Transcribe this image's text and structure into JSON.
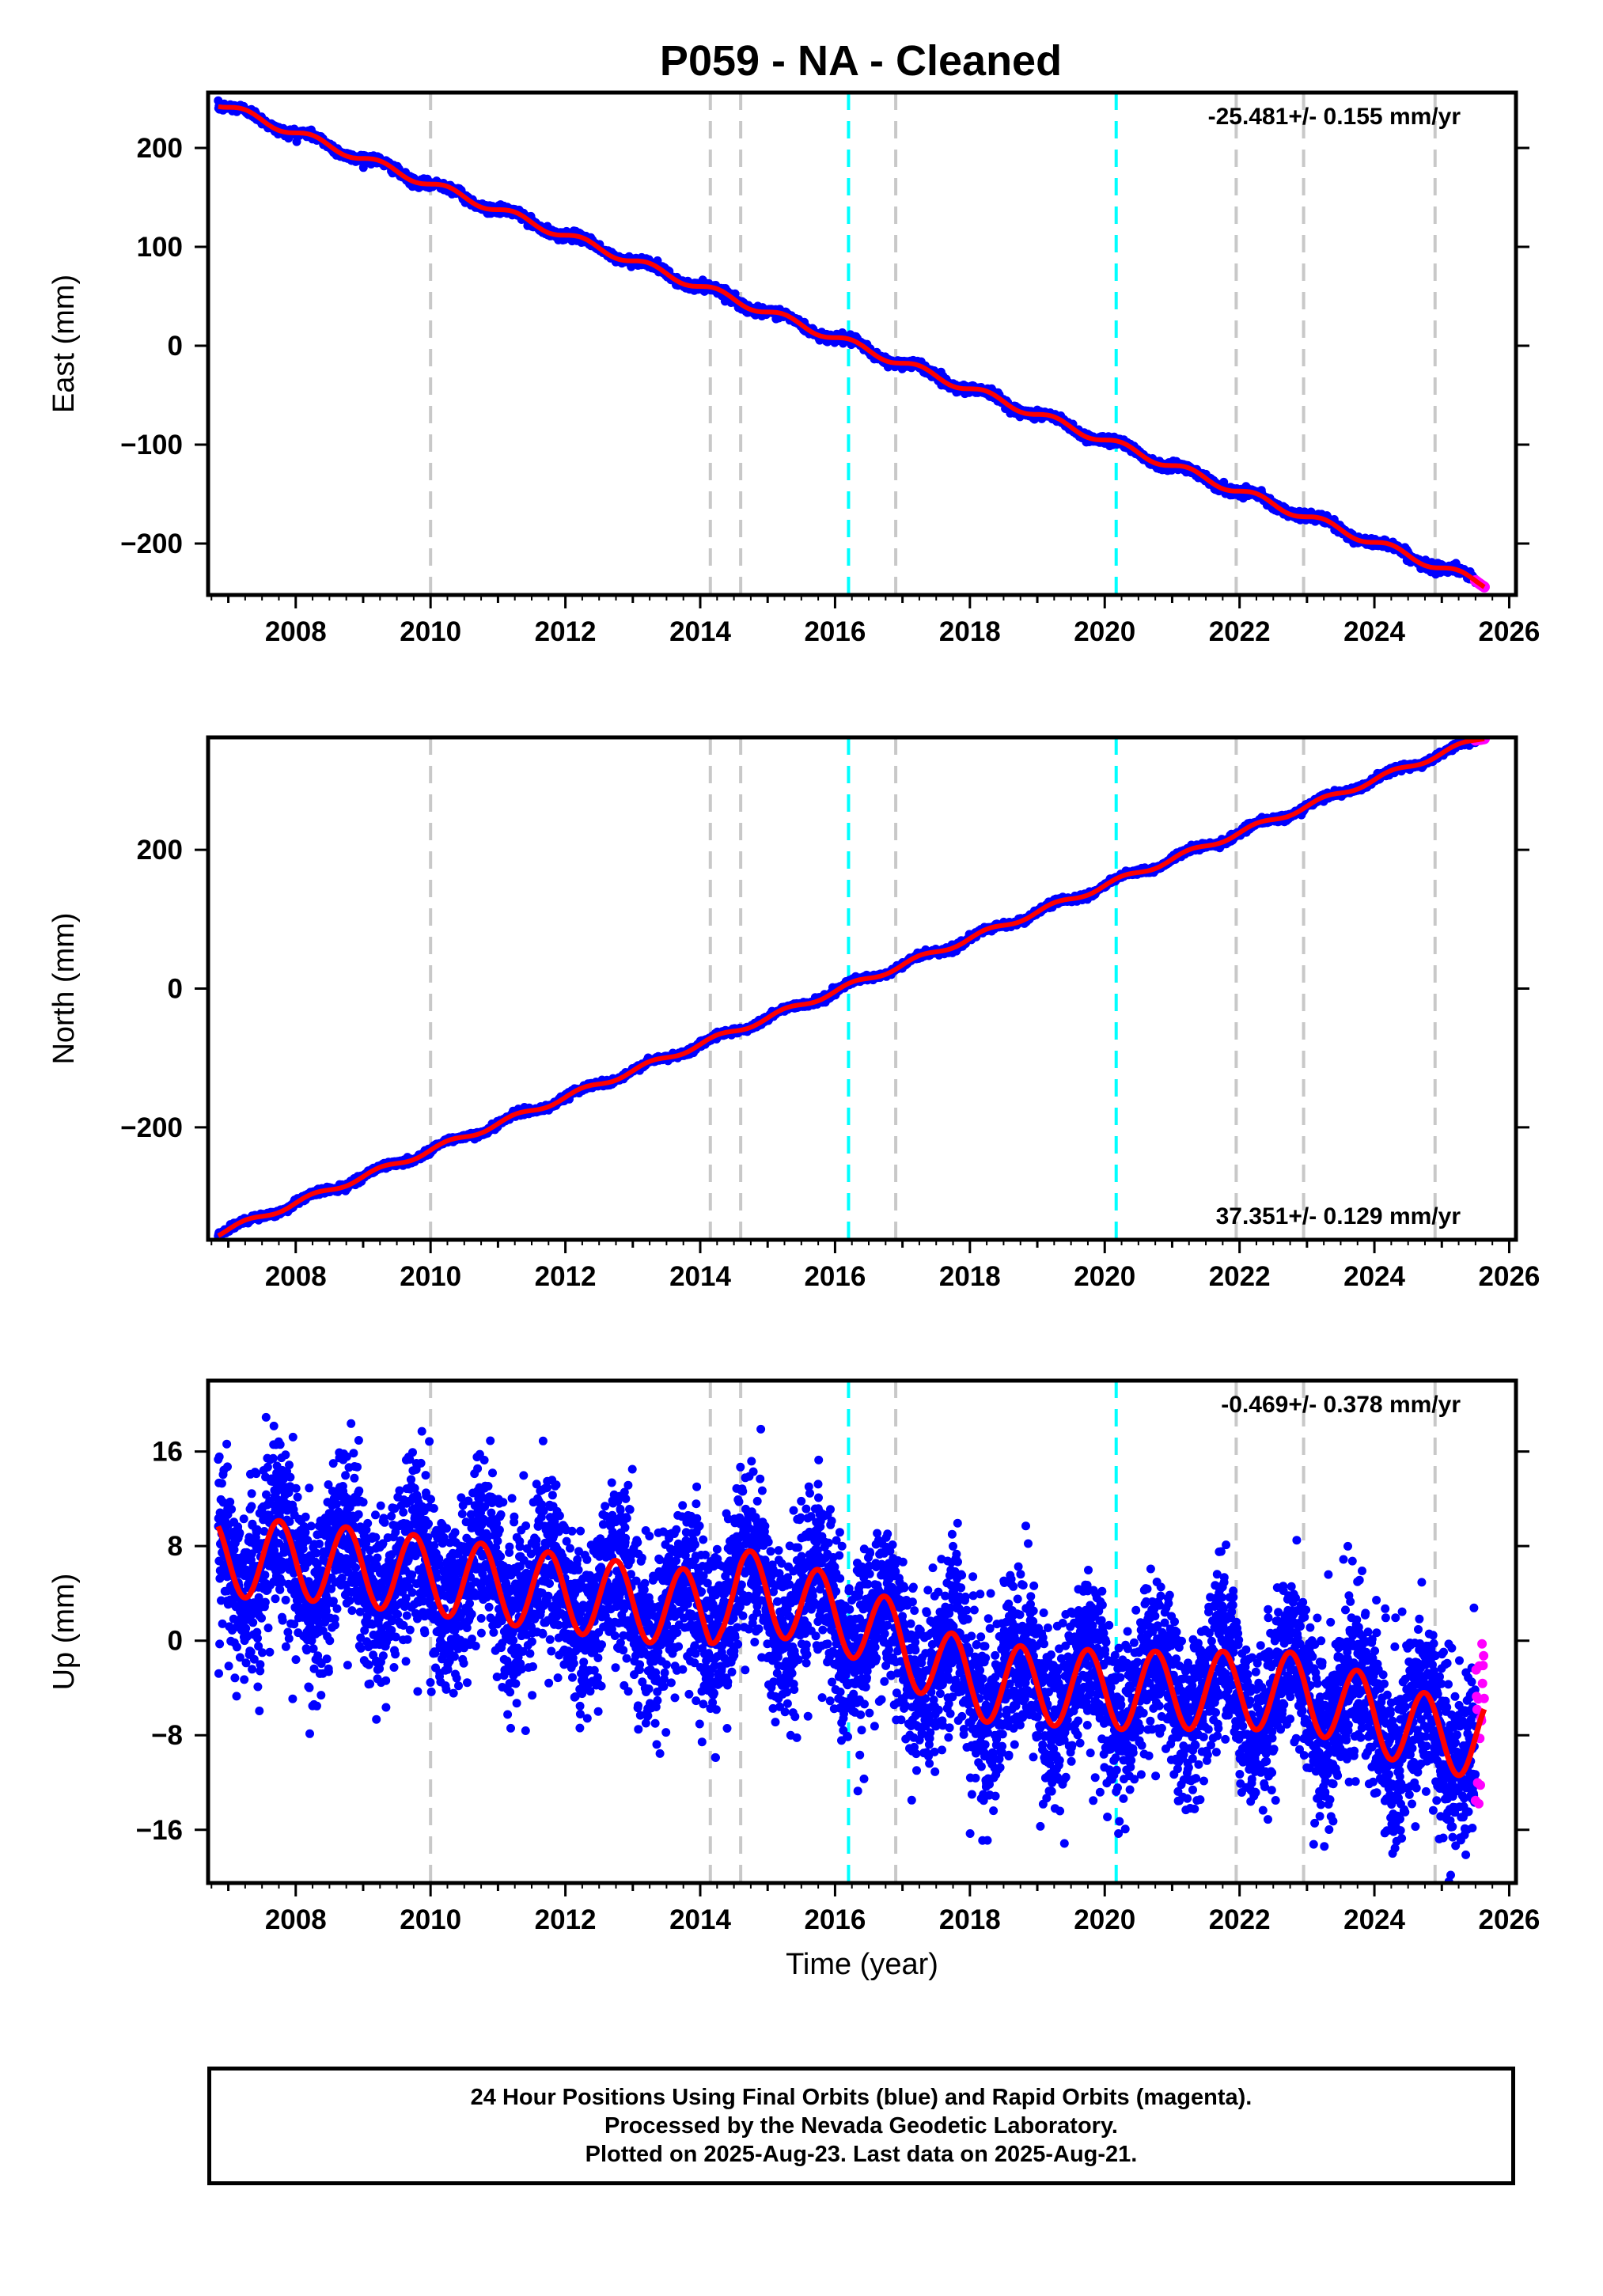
{
  "title": "P059  - NA - Cleaned",
  "colors": {
    "final_orbits": "#0000ff",
    "rapid_orbits": "#ff00ff",
    "model_fit": "#ff0000",
    "equipment_change": "#c8c8c8",
    "earthquake": "#00ffff"
  },
  "footer": {
    "line1": "24 Hour Positions Using Final Orbits (blue) and Rapid Orbits (magenta).",
    "line2": "Processed by the Nevada Geodetic Laboratory.",
    "line3": "Plotted on 2025-Aug-23. Last data on 2025-Aug-21."
  },
  "chart_data": [
    {
      "type": "scatter",
      "ylabel": "East (mm)",
      "xlabel": "",
      "rate_label": "-25.481+/- 0.155 mm/yr",
      "rate_position": "top-right",
      "xlim": [
        2006.7,
        2026.1
      ],
      "ylim": [
        -252,
        256
      ],
      "xticks": [
        2008,
        2010,
        2012,
        2014,
        2016,
        2018,
        2020,
        2022,
        2024,
        2026
      ],
      "yticks": [
        200,
        100,
        0,
        -100,
        -200
      ],
      "ytick_labels": [
        "200",
        "100",
        "0",
        "−100",
        "−200"
      ],
      "trend": {
        "start": [
          2006.85,
          245
        ],
        "end": [
          2025.63,
          -241
        ]
      },
      "final_orbits_end": 2025.5,
      "rapid_orbits_range": [
        2025.5,
        2025.63
      ],
      "equipment_change_lines": [
        2010.0,
        2014.15,
        2014.6,
        2016.9,
        2021.95,
        2022.95,
        2024.9
      ],
      "earthquake_lines": [
        2016.2,
        2020.17
      ]
    },
    {
      "type": "scatter",
      "ylabel": "North (mm)",
      "xlabel": "",
      "rate_label": "37.351+/- 0.129 mm/yr",
      "rate_position": "bottom-right",
      "xlim": [
        2006.7,
        2026.1
      ],
      "ylim": [
        -362,
        362
      ],
      "xticks": [
        2008,
        2010,
        2012,
        2014,
        2016,
        2018,
        2020,
        2022,
        2024,
        2026
      ],
      "yticks": [
        200,
        0,
        -200
      ],
      "ytick_labels": [
        "200",
        "0",
        "−200"
      ],
      "trend": {
        "start": [
          2006.85,
          -353
        ],
        "end": [
          2025.63,
          363
        ]
      },
      "final_orbits_end": 2025.5,
      "rapid_orbits_range": [
        2025.5,
        2025.63
      ],
      "equipment_change_lines": [
        2010.0,
        2014.15,
        2014.6,
        2016.9,
        2021.95,
        2022.95,
        2024.9
      ],
      "earthquake_lines": [
        2016.2,
        2020.17
      ]
    },
    {
      "type": "scatter",
      "ylabel": "Up (mm)",
      "xlabel": "Time (year)",
      "rate_label": "-0.469+/- 0.378 mm/yr",
      "rate_position": "top-right",
      "xlim": [
        2006.7,
        2026.1
      ],
      "ylim": [
        -20.5,
        22
      ],
      "xticks": [
        2008,
        2010,
        2012,
        2014,
        2016,
        2018,
        2020,
        2022,
        2024,
        2026
      ],
      "yticks": [
        16,
        8,
        0,
        -8,
        -16
      ],
      "ytick_labels": [
        "16",
        "8",
        "0",
        "−8",
        "−16"
      ],
      "model_curve": {
        "x": [
          2006.85,
          2008.0,
          2010.0,
          2012.0,
          2014.0,
          2014.15,
          2014.3,
          2014.6,
          2016.2,
          2016.9,
          2018.0,
          2020.17,
          2021.95,
          2022.95,
          2024.9,
          2025.63
        ],
        "baseline": [
          7.0,
          6.8,
          5.5,
          4.0,
          2.6,
          2.5,
          3.8,
          4.5,
          2.0,
          0.0,
          -3.5,
          -4.2,
          -4.2,
          -4.3,
          -8.0,
          -8.2
        ],
        "amplitude_mm": 3.3,
        "period_years": 1.0
      },
      "scatter_spread_mm": 3.6,
      "final_orbits_end": 2025.5,
      "rapid_orbits_range": [
        2025.5,
        2025.63
      ],
      "equipment_change_lines": [
        2010.0,
        2014.15,
        2014.6,
        2016.9,
        2021.95,
        2022.95,
        2024.9
      ],
      "earthquake_lines": [
        2016.2,
        2020.17
      ]
    }
  ]
}
